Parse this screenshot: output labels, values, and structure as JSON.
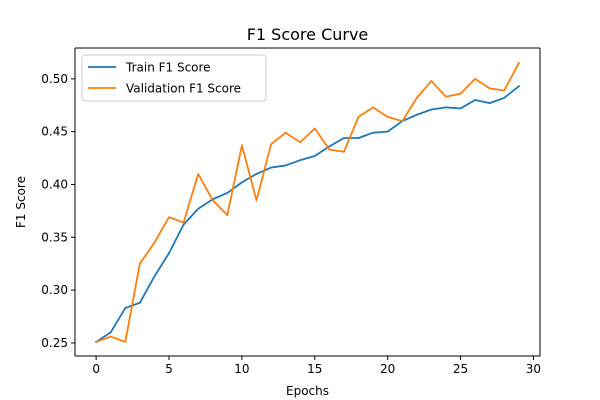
{
  "chart_data": {
    "type": "line",
    "title": "F1 Score Curve",
    "xlabel": "Epochs",
    "ylabel": "F1 Score",
    "xlim": [
      -1.45,
      30.45
    ],
    "ylim": [
      0.2376,
      0.5292
    ],
    "x_ticks": [
      0,
      5,
      10,
      15,
      20,
      25,
      30
    ],
    "y_ticks": [
      0.25,
      0.3,
      0.35,
      0.4,
      0.45,
      0.5
    ],
    "x_tick_labels": [
      "0",
      "5",
      "10",
      "15",
      "20",
      "25",
      "30"
    ],
    "y_tick_labels": [
      "0.25",
      "0.30",
      "0.35",
      "0.40",
      "0.45",
      "0.50"
    ],
    "grid": false,
    "legend_position": "top-left",
    "x": [
      0,
      1,
      2,
      3,
      4,
      5,
      6,
      7,
      8,
      9,
      10,
      11,
      12,
      13,
      14,
      15,
      16,
      17,
      18,
      19,
      20,
      21,
      22,
      23,
      24,
      25,
      26,
      27,
      28,
      29
    ],
    "series": [
      {
        "name": "Train F1 Score",
        "color": "#1f77b4",
        "values": [
          0.251,
          0.26,
          0.283,
          0.288,
          0.313,
          0.335,
          0.362,
          0.377,
          0.386,
          0.392,
          0.402,
          0.41,
          0.416,
          0.418,
          0.423,
          0.427,
          0.436,
          0.444,
          0.444,
          0.449,
          0.45,
          0.46,
          0.466,
          0.471,
          0.473,
          0.472,
          0.48,
          0.477,
          0.482,
          0.493
        ]
      },
      {
        "name": "Validation F1 Score",
        "color": "#ff7f0e",
        "values": [
          0.251,
          0.256,
          0.251,
          0.325,
          0.345,
          0.369,
          0.364,
          0.41,
          0.385,
          0.371,
          0.437,
          0.385,
          0.438,
          0.449,
          0.44,
          0.453,
          0.433,
          0.431,
          0.464,
          0.473,
          0.464,
          0.46,
          0.482,
          0.498,
          0.483,
          0.486,
          0.5,
          0.491,
          0.489,
          0.515
        ]
      }
    ]
  }
}
